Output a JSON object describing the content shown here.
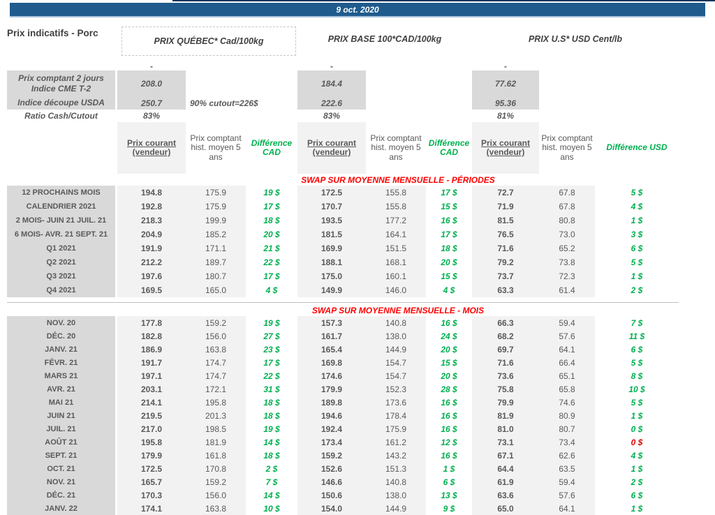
{
  "banner": {
    "date": "9 oct. 2020"
  },
  "header": {
    "page_title": "Prix indicatifs - Porc",
    "groups": [
      {
        "title": "PRIX QUÉBEC* Cad/100kg"
      },
      {
        "title": "PRIX BASE 100*CAD/100kg"
      },
      {
        "title": "PRIX U.S* USD Cent/lb"
      }
    ]
  },
  "summary": {
    "dash": "-",
    "rows": [
      {
        "label": "Prix comptant 2 jours\nIndice CME T-2",
        "qc": "208.0",
        "base": "184.4",
        "us": "77.62"
      },
      {
        "label": "Indice découpe USDA",
        "qc": "250.7",
        "note": "90% cutout=226$",
        "base": "222.6",
        "us": "95.36"
      },
      {
        "label": "Ratio Cash/Cutout",
        "qc": "83%",
        "base": "83%",
        "us": "81%"
      }
    ]
  },
  "col_headers": {
    "current": "Prix courant (vendeur)",
    "hist": "Prix comptant hist. moyen 5 ans",
    "diff_cad": "Différence CAD",
    "diff_usd": "Différence USD"
  },
  "colors": {
    "accent_blue": "#1f5b8c",
    "green": "#00b050",
    "red": "#ff0000",
    "label_bg": "#d9d9d9",
    "value_bg": "#f2f2f2"
  },
  "sections": [
    {
      "title": "SWAP SUR MOYENNE MENSUELLE - PÉRIODES",
      "rows": [
        {
          "label": "12 PROCHAINS MOIS",
          "cells": [
            "194.8",
            "175.9",
            "19 $",
            "172.5",
            "155.8",
            "17 $",
            "72.7",
            "67.8",
            "5 $"
          ]
        },
        {
          "label": "CALENDRIER 2021",
          "cells": [
            "192.8",
            "175.9",
            "17 $",
            "170.7",
            "155.8",
            "15 $",
            "71.9",
            "67.8",
            "4 $"
          ]
        },
        {
          "label": "2 MOIS- JUIN 21 JUIL. 21",
          "cells": [
            "218.3",
            "199.9",
            "18 $",
            "193.5",
            "177.2",
            "16 $",
            "81.5",
            "80.8",
            "1 $"
          ]
        },
        {
          "label": "6 MOIS- AVR. 21 SEPT. 21",
          "cells": [
            "204.9",
            "185.2",
            "20 $",
            "181.5",
            "164.1",
            "17 $",
            "76.5",
            "73.0",
            "3 $"
          ]
        },
        {
          "label": "Q1 2021",
          "cells": [
            "191.9",
            "171.1",
            "21 $",
            "169.9",
            "151.5",
            "18 $",
            "71.6",
            "65.2",
            "6 $"
          ]
        },
        {
          "label": "Q2 2021",
          "cells": [
            "212.2",
            "189.7",
            "22 $",
            "188.1",
            "168.1",
            "20 $",
            "79.2",
            "73.8",
            "5 $"
          ]
        },
        {
          "label": "Q3 2021",
          "cells": [
            "197.6",
            "180.7",
            "17 $",
            "175.0",
            "160.1",
            "15 $",
            "73.7",
            "72.3",
            "1 $"
          ]
        },
        {
          "label": "Q4 2021",
          "cells": [
            "169.5",
            "165.0",
            "4 $",
            "149.9",
            "146.0",
            "4 $",
            "63.3",
            "61.4",
            "2 $"
          ]
        }
      ]
    },
    {
      "title": "SWAP SUR MOYENNE MENSUELLE - MOIS",
      "rows": [
        {
          "label": "NOV. 20",
          "cells": [
            "177.8",
            "159.2",
            "19 $",
            "157.3",
            "140.8",
            "16 $",
            "66.3",
            "59.4",
            "7 $"
          ]
        },
        {
          "label": "DÉC. 20",
          "cells": [
            "182.8",
            "156.0",
            "27 $",
            "161.7",
            "138.0",
            "24 $",
            "68.2",
            "57.6",
            "11 $"
          ]
        },
        {
          "label": "JANV. 21",
          "cells": [
            "186.9",
            "163.8",
            "23 $",
            "165.4",
            "144.9",
            "20 $",
            "69.7",
            "64.1",
            "6 $"
          ]
        },
        {
          "label": "FÉVR. 21",
          "cells": [
            "191.7",
            "174.7",
            "17 $",
            "169.8",
            "154.7",
            "15 $",
            "71.6",
            "66.4",
            "5 $"
          ]
        },
        {
          "label": "MARS 21",
          "cells": [
            "197.1",
            "174.7",
            "22 $",
            "174.6",
            "154.7",
            "20 $",
            "73.6",
            "65.1",
            "8 $"
          ]
        },
        {
          "label": "AVR. 21",
          "cells": [
            "203.1",
            "172.1",
            "31 $",
            "179.9",
            "152.3",
            "28 $",
            "75.8",
            "65.8",
            "10 $"
          ]
        },
        {
          "label": "MAI 21",
          "cells": [
            "214.1",
            "195.8",
            "18 $",
            "189.8",
            "173.6",
            "16 $",
            "79.9",
            "74.6",
            "5 $"
          ]
        },
        {
          "label": "JUIN 21",
          "cells": [
            "219.5",
            "201.3",
            "18 $",
            "194.6",
            "178.4",
            "16 $",
            "81.9",
            "80.9",
            "1 $"
          ]
        },
        {
          "label": "JUIL. 21",
          "cells": [
            "217.0",
            "198.5",
            "19 $",
            "192.4",
            "175.9",
            "16 $",
            "81.0",
            "80.7",
            "0 $"
          ]
        },
        {
          "label": "AOÛT 21",
          "cells": [
            "195.8",
            "181.9",
            "14 $",
            "173.4",
            "161.2",
            "12 $",
            "73.1",
            "73.4",
            "0 $"
          ],
          "red_cells": [
            8
          ]
        },
        {
          "label": "SEPT. 21",
          "cells": [
            "179.9",
            "161.8",
            "18 $",
            "159.2",
            "143.2",
            "16 $",
            "67.1",
            "62.6",
            "4 $"
          ]
        },
        {
          "label": "OCT. 21",
          "cells": [
            "172.5",
            "170.8",
            "2 $",
            "152.6",
            "151.3",
            "1 $",
            "64.4",
            "63.5",
            "1 $"
          ]
        },
        {
          "label": "NOV. 21",
          "cells": [
            "165.7",
            "159.2",
            "7 $",
            "146.6",
            "140.8",
            "6 $",
            "61.9",
            "59.4",
            "2 $"
          ]
        },
        {
          "label": "DÉC. 21",
          "cells": [
            "170.3",
            "156.0",
            "14 $",
            "150.6",
            "138.0",
            "13 $",
            "63.6",
            "57.6",
            "6 $"
          ]
        },
        {
          "label": "JANV. 22",
          "cells": [
            "174.1",
            "163.8",
            "10 $",
            "154.0",
            "144.9",
            "9 $",
            "65.0",
            "64.1",
            "1 $"
          ]
        }
      ]
    }
  ]
}
